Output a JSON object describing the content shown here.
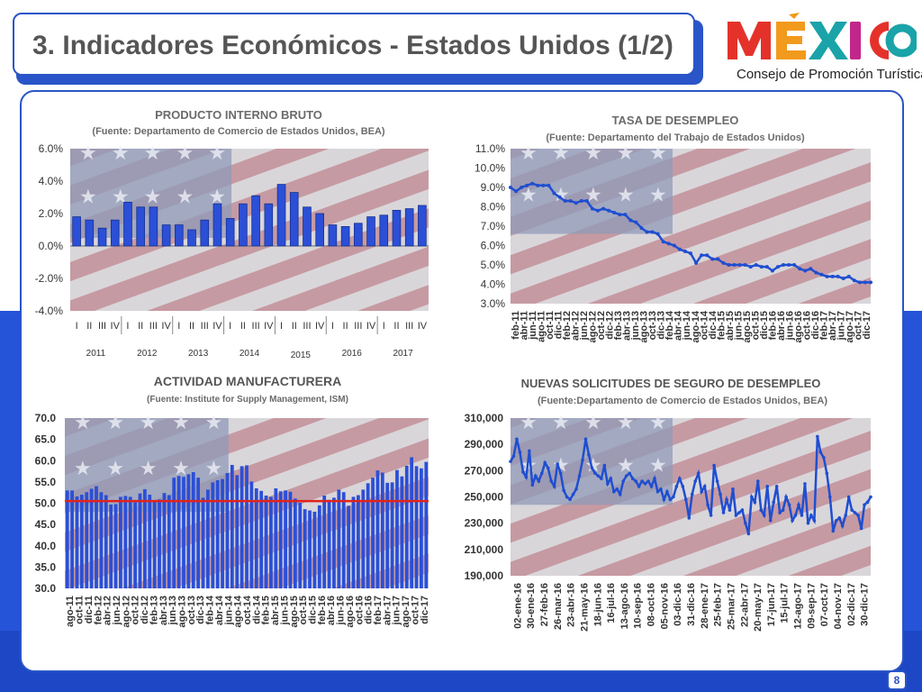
{
  "slide": {
    "title": "3. Indicadores Económicos - Estados Unidos (1/2)",
    "logo_text": "MÉXICO",
    "logo_subtitle": "Consejo de Promoción Turística",
    "page_number": "8",
    "colors": {
      "accent": "#2a55c8",
      "bar": "#2b4fd6",
      "line": "#1f4ed0",
      "threshold": "#e0231c",
      "title": "#555555"
    },
    "background_image": "usa-flag"
  },
  "chart_data": [
    {
      "type": "bar",
      "title": "PRODUCTO INTERNO BRUTO",
      "subtitle": "(Fuente: Departamento de Comercio de Estados Unidos, BEA)",
      "quarter_labels": [
        "I",
        "II",
        "III",
        "IV"
      ],
      "years": [
        "2011",
        "2012",
        "2013",
        "2014",
        "2015",
        "2016",
        "2017"
      ],
      "values": [
        1.8,
        1.6,
        1.1,
        1.6,
        2.7,
        2.4,
        2.4,
        1.3,
        1.3,
        1.0,
        1.6,
        2.6,
        1.7,
        2.6,
        3.1,
        2.6,
        3.8,
        3.3,
        2.4,
        2.0,
        1.3,
        1.2,
        1.4,
        1.8,
        1.9,
        2.2,
        2.3,
        2.5
      ],
      "ylim": [
        -4.0,
        6.0
      ],
      "yticks": [
        "6.0%",
        "4.0%",
        "2.0%",
        "0.0%",
        "-2.0%",
        "-4.0%"
      ],
      "grid": false
    },
    {
      "type": "line",
      "title": "TASA DE DESEMPLEO",
      "subtitle": "(Fuente: Departamento del Trabajo de Estados Unidos)",
      "x_labels": [
        "feb-11",
        "abr-11",
        "jun-11",
        "ago-11",
        "oct-11",
        "dic-11",
        "feb-12",
        "abr-12",
        "jun-12",
        "ago-12",
        "oct-12",
        "dic-12",
        "feb-13",
        "abr-13",
        "jun-13",
        "ago-13",
        "oct-13",
        "dic-13",
        "feb-14",
        "abr-14",
        "jun-14",
        "ago-14",
        "oct-14",
        "dic-14",
        "feb-15",
        "abr-15",
        "jun-15",
        "ago-15",
        "oct-15",
        "dic-15",
        "feb-16",
        "abr-16",
        "jun-16",
        "ago-16",
        "oct-16",
        "dic-16",
        "feb-17",
        "abr-17",
        "jun-17",
        "ago-17",
        "oct-17",
        "dic-17"
      ],
      "values": [
        9.0,
        8.8,
        9.0,
        9.1,
        9.2,
        9.1,
        9.1,
        9.1,
        8.7,
        8.5,
        8.3,
        8.3,
        8.2,
        8.3,
        8.3,
        7.9,
        7.8,
        7.9,
        7.8,
        7.7,
        7.6,
        7.6,
        7.3,
        7.2,
        6.9,
        6.7,
        6.7,
        6.6,
        6.2,
        6.1,
        6.0,
        5.8,
        5.7,
        5.6,
        5.1,
        5.5,
        5.5,
        5.3,
        5.3,
        5.1,
        5.0,
        5.0,
        5.0,
        5.0,
        4.9,
        5.0,
        4.9,
        4.9,
        4.7,
        4.9,
        5.0,
        5.0,
        5.0,
        4.8,
        4.7,
        4.8,
        4.6,
        4.5,
        4.4,
        4.4,
        4.4,
        4.3,
        4.4,
        4.2,
        4.1,
        4.1,
        4.1
      ],
      "ylim": [
        3.0,
        11.0
      ],
      "yticks": [
        "11.0%",
        "10.0%",
        "9.0%",
        "8.0%",
        "7.0%",
        "6.0%",
        "5.0%",
        "4.0%",
        "3.0%"
      ],
      "grid": false
    },
    {
      "type": "bar",
      "title": "ACTIVIDAD MANUFACTURERA",
      "subtitle": "(Fuente: Institute for Supply Management, ISM)",
      "x_labels": [
        "ago-11",
        "oct-11",
        "dic-11",
        "feb-12",
        "abr-12",
        "jun-12",
        "ago-12",
        "oct-12",
        "dic-12",
        "feb-13",
        "abr-13",
        "jun-13",
        "ago-13",
        "oct-13",
        "dic-13",
        "feb-14",
        "abr-14",
        "jun-14",
        "ago-14",
        "oct-14",
        "dic-14",
        "feb-15",
        "abr-15",
        "jun-15",
        "ago-15",
        "oct-15",
        "dic-15",
        "feb-16",
        "abr-16",
        "jun-16",
        "ago-16",
        "oct-16",
        "dic-16",
        "feb-17",
        "abr-17",
        "jun-17",
        "ago-17",
        "oct-17",
        "dic-17"
      ],
      "values": [
        53.0,
        53.0,
        51.6,
        52.0,
        52.6,
        53.4,
        54.0,
        52.6,
        51.9,
        49.7,
        49.8,
        51.5,
        51.7,
        51.5,
        50.2,
        52.3,
        53.3,
        52.0,
        50.3,
        50.9,
        52.4,
        51.9,
        56.0,
        56.4,
        56.2,
        56.8,
        57.3,
        56.0,
        51.3,
        53.2,
        54.9,
        55.4,
        55.7,
        57.1,
        59.0,
        56.6,
        58.7,
        58.9,
        55.1,
        53.5,
        52.9,
        51.8,
        51.5,
        53.5,
        52.8,
        53.0,
        52.7,
        51.1,
        50.1,
        48.6,
        48.3,
        48.0,
        49.5,
        51.8,
        50.8,
        51.3,
        53.2,
        52.6,
        49.4,
        51.5,
        51.9,
        53.2,
        54.7,
        56.0,
        57.7,
        57.2,
        54.8,
        54.9,
        57.8,
        56.3,
        58.8,
        60.8,
        58.7,
        58.2,
        59.7
      ],
      "threshold": 50.5,
      "ylim": [
        30.0,
        70.0
      ],
      "yticks": [
        "70.0",
        "65.0",
        "60.0",
        "55.0",
        "50.0",
        "45.0",
        "40.0",
        "35.0",
        "30.0"
      ],
      "grid": false
    },
    {
      "type": "line",
      "title": "NUEVAS SOLICITUDES DE SEGURO DE DESEMPLEO",
      "subtitle": "(Fuente:Departamento de Comercio de Estados Unidos, BEA)",
      "x_labels": [
        "02-ene-16",
        "30-ene-16",
        "27-feb-16",
        "26-mar-16",
        "23-abr-16",
        "21-may-16",
        "18-jun-16",
        "16-jul-16",
        "13-ago-16",
        "10-sep-16",
        "08-oct-16",
        "05-nov-16",
        "03-dic-16",
        "31-dic-16",
        "28-ene-17",
        "25-feb-17",
        "25-mar-17",
        "22-abr-17",
        "20-may-17",
        "17-jun-17",
        "15-jul-17",
        "12-ago-17",
        "09-sep-17",
        "07-oct-17",
        "04-nov-17",
        "02-dic-17",
        "30-dic-17"
      ],
      "values": [
        277000,
        281000,
        294000,
        284000,
        269000,
        265000,
        285000,
        259000,
        266000,
        262000,
        268000,
        276000,
        272000,
        262000,
        258000,
        275000,
        268000,
        255000,
        250000,
        248000,
        252000,
        256000,
        266000,
        278000,
        294000,
        282000,
        272000,
        268000,
        266000,
        264000,
        274000,
        260000,
        264000,
        254000,
        256000,
        252000,
        262000,
        266000,
        268000,
        264000,
        262000,
        258000,
        262000,
        260000,
        262000,
        258000,
        264000,
        254000,
        256000,
        248000,
        254000,
        248000,
        250000,
        258000,
        264000,
        258000,
        248000,
        234000,
        252000,
        262000,
        268000,
        254000,
        258000,
        244000,
        236000,
        274000,
        262000,
        252000,
        238000,
        248000,
        240000,
        256000,
        236000,
        238000,
        240000,
        230000,
        222000,
        250000,
        246000,
        262000,
        240000,
        236000,
        258000,
        232000,
        246000,
        258000,
        238000,
        240000,
        250000,
        244000,
        232000,
        236000,
        244000,
        236000,
        260000,
        230000,
        236000,
        232000,
        296000,
        284000,
        280000,
        268000,
        250000,
        224000,
        232000,
        234000,
        228000,
        236000,
        250000,
        240000,
        238000,
        236000,
        226000,
        244000,
        246000,
        250000
      ],
      "ylim": [
        190000,
        310000
      ],
      "yticks": [
        "310,000",
        "290,000",
        "270,000",
        "250,000",
        "230,000",
        "210,000",
        "190,000"
      ],
      "grid": false
    }
  ]
}
